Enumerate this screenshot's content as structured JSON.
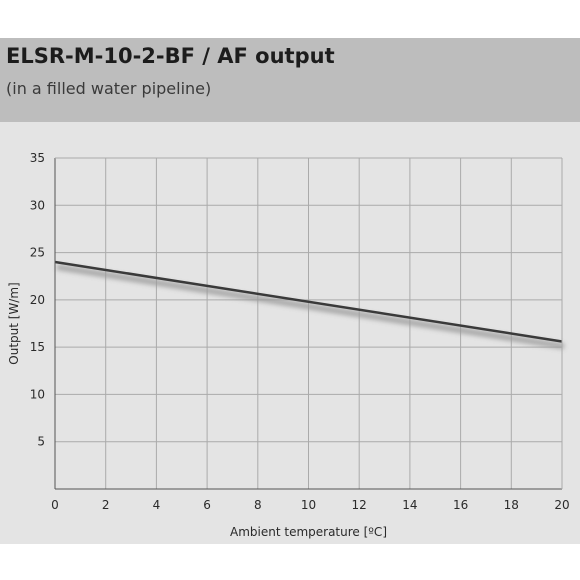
{
  "header": {
    "title": "ELSR-M-10-2-BF / AF output",
    "subtitle": "(in a filled water pipeline)"
  },
  "colors": {
    "header_background": "#bdbdbd",
    "plot_background": "#e4e4e4",
    "grid": "#aaaaaa",
    "line": "#3a3a3a",
    "line_shadow": "#9a9a9a"
  },
  "chart_data": {
    "type": "line",
    "title": "ELSR-M-10-2-BF / AF output",
    "subtitle": "(in a filled water pipeline)",
    "xlabel": "Ambient temperature [ºC]",
    "ylabel": "Output [W/m]",
    "xlim": [
      0,
      20
    ],
    "ylim": [
      0,
      35
    ],
    "xticks": [
      0,
      2,
      4,
      6,
      8,
      10,
      12,
      14,
      16,
      18,
      20
    ],
    "yticks": [
      5,
      10,
      15,
      20,
      25,
      30,
      35
    ],
    "grid": true,
    "legend": "none",
    "series": [
      {
        "x": [
          0,
          20
        ],
        "y": [
          24,
          15.6
        ]
      }
    ]
  }
}
